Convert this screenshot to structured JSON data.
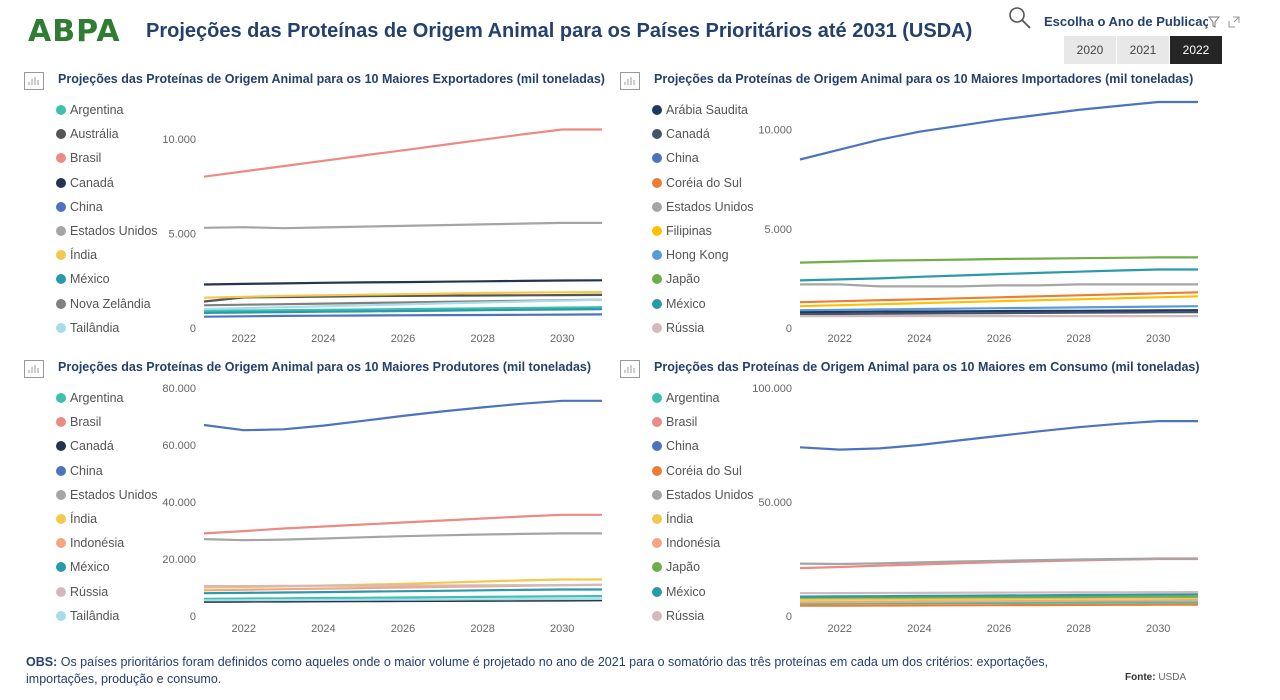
{
  "header": {
    "logo": "ABPA",
    "title": "Projeções das Proteínas de Origem Animal para os Países Prioritários até 2031 (USDA)",
    "year_filter_label": "Escolha o Ano de Publicação",
    "years": [
      "2020",
      "2021",
      "2022"
    ],
    "selected_year": "2022"
  },
  "footer": {
    "obs_label": "OBS:",
    "obs_text": "Os países prioritários foram definidos como aqueles onde o maior volume é projetado no ano de 2021 para o somatório das três proteínas em cada um dos critérios: exportações, importações, produção e consumo.",
    "fonte_label": "Fonte:",
    "fonte_value": "USDA"
  },
  "chart_data": [
    {
      "type": "line",
      "title": "Projeções das Proteínas de Origem Animal para os 10 Maiores Exportadores (mil toneladas)",
      "x": [
        2021,
        2022,
        2023,
        2024,
        2025,
        2026,
        2027,
        2028,
        2029,
        2030,
        2031
      ],
      "x_ticks": [
        "2022",
        "2024",
        "2026",
        "2028",
        "2030"
      ],
      "ylim": [
        0,
        11000
      ],
      "y_ticks": [
        0,
        5000,
        10000
      ],
      "y_tick_labels": [
        "0",
        "5.000",
        "10.000"
      ],
      "xlabel": "",
      "ylabel": "",
      "legend_position": "left",
      "series": [
        {
          "name": "Argentina",
          "color": "#3fbfad",
          "values": [
            900,
            920,
            940,
            960,
            980,
            1000,
            1020,
            1040,
            1060,
            1080,
            1100
          ]
        },
        {
          "name": "Austrália",
          "color": "#555555",
          "values": [
            1400,
            1620,
            1640,
            1660,
            1680,
            1700,
            1710,
            1720,
            1730,
            1740,
            1750
          ]
        },
        {
          "name": "Brasil",
          "color": "#ec8a85",
          "values": [
            8000,
            8280,
            8560,
            8840,
            9120,
            9400,
            9680,
            9960,
            10240,
            10500,
            10500
          ]
        },
        {
          "name": "Canadá",
          "color": "#233450",
          "values": [
            2300,
            2330,
            2360,
            2390,
            2410,
            2430,
            2450,
            2470,
            2490,
            2510,
            2520
          ]
        },
        {
          "name": "China",
          "color": "#4e73be",
          "values": [
            600,
            620,
            640,
            650,
            660,
            670,
            680,
            690,
            700,
            710,
            720
          ]
        },
        {
          "name": "Estados Unidos",
          "color": "#a5a5a5",
          "values": [
            5300,
            5330,
            5280,
            5320,
            5360,
            5400,
            5440,
            5480,
            5520,
            5560,
            5560
          ]
        },
        {
          "name": "Índia",
          "color": "#f2c94c",
          "values": [
            1600,
            1650,
            1700,
            1730,
            1760,
            1790,
            1820,
            1850,
            1870,
            1890,
            1900
          ]
        },
        {
          "name": "México",
          "color": "#2a9aaa",
          "values": [
            800,
            820,
            840,
            860,
            880,
            900,
            920,
            940,
            960,
            980,
            1000
          ]
        },
        {
          "name": "Nova Zelândia",
          "color": "#7f7f7f",
          "values": [
            1200,
            1230,
            1260,
            1290,
            1320,
            1350,
            1380,
            1410,
            1440,
            1470,
            1500
          ]
        },
        {
          "name": "Tailândia",
          "color": "#a8dce6",
          "values": [
            1000,
            1050,
            1100,
            1150,
            1200,
            1250,
            1300,
            1350,
            1400,
            1450,
            1500
          ]
        }
      ]
    },
    {
      "type": "line",
      "title": "Projeções da Proteínas de Origem Animal para os 10 Maiores Importadores (mil toneladas)",
      "x": [
        2021,
        2022,
        2023,
        2024,
        2025,
        2026,
        2027,
        2028,
        2029,
        2030,
        2031
      ],
      "x_ticks": [
        "2022",
        "2024",
        "2026",
        "2028",
        "2030"
      ],
      "ylim": [
        0,
        11500
      ],
      "y_ticks": [
        0,
        5000,
        10000
      ],
      "y_tick_labels": [
        "0",
        "5.000",
        "10.000"
      ],
      "xlabel": "",
      "ylabel": "",
      "legend_position": "left",
      "series": [
        {
          "name": "Arábia Saudita",
          "color": "#1f3864",
          "values": [
            800,
            810,
            820,
            830,
            840,
            850,
            860,
            870,
            880,
            890,
            900
          ]
        },
        {
          "name": "Canadá",
          "color": "#44546a",
          "values": [
            700,
            710,
            720,
            730,
            740,
            750,
            760,
            770,
            780,
            790,
            800
          ]
        },
        {
          "name": "China",
          "color": "#4e73be",
          "values": [
            8500,
            9000,
            9500,
            9900,
            10200,
            10500,
            10750,
            11000,
            11200,
            11400,
            11400
          ]
        },
        {
          "name": "Coréia do Sul",
          "color": "#ed7d31",
          "values": [
            1300,
            1350,
            1400,
            1450,
            1500,
            1550,
            1600,
            1650,
            1700,
            1750,
            1800
          ]
        },
        {
          "name": "Estados Unidos",
          "color": "#a5a5a5",
          "values": [
            2200,
            2200,
            2100,
            2100,
            2100,
            2150,
            2150,
            2200,
            2200,
            2200,
            2200
          ]
        },
        {
          "name": "Filipinas",
          "color": "#ffc000",
          "values": [
            1100,
            1150,
            1200,
            1250,
            1300,
            1350,
            1400,
            1450,
            1500,
            1550,
            1600
          ]
        },
        {
          "name": "Hong Kong",
          "color": "#5b9bd5",
          "values": [
            900,
            920,
            940,
            960,
            980,
            1000,
            1020,
            1040,
            1060,
            1080,
            1100
          ]
        },
        {
          "name": "Japão",
          "color": "#70ad47",
          "values": [
            3300,
            3350,
            3400,
            3420,
            3450,
            3480,
            3500,
            3520,
            3540,
            3560,
            3560
          ]
        },
        {
          "name": "México",
          "color": "#2a9aaa",
          "values": [
            2400,
            2450,
            2500,
            2580,
            2650,
            2720,
            2780,
            2840,
            2900,
            2950,
            2950
          ]
        },
        {
          "name": "Rússia",
          "color": "#d4b9bc",
          "values": [
            600,
            600,
            600,
            600,
            600,
            600,
            600,
            600,
            600,
            600,
            600
          ]
        }
      ]
    },
    {
      "type": "line",
      "title": "Projeções das Proteínas de Origem Animal para os 10 Maiores Produtores (mil toneladas)",
      "x": [
        2021,
        2022,
        2023,
        2024,
        2025,
        2026,
        2027,
        2028,
        2029,
        2030,
        2031
      ],
      "x_ticks": [
        "2022",
        "2024",
        "2026",
        "2028",
        "2030"
      ],
      "ylim": [
        0,
        80000
      ],
      "y_ticks": [
        0,
        20000,
        40000,
        60000,
        80000
      ],
      "y_tick_labels": [
        "0",
        "20.000",
        "40.000",
        "60.000",
        "80.000"
      ],
      "xlabel": "",
      "ylabel": "",
      "legend_position": "left",
      "series": [
        {
          "name": "Argentina",
          "color": "#3fbfad",
          "values": [
            6000,
            6100,
            6200,
            6300,
            6400,
            6500,
            6600,
            6700,
            6800,
            6900,
            7000
          ]
        },
        {
          "name": "Brasil",
          "color": "#ec8a85",
          "values": [
            29000,
            29800,
            30700,
            31400,
            32100,
            32800,
            33500,
            34200,
            34900,
            35500,
            35500
          ]
        },
        {
          "name": "Canadá",
          "color": "#233450",
          "values": [
            5000,
            5050,
            5100,
            5150,
            5200,
            5250,
            5300,
            5350,
            5400,
            5450,
            5500
          ]
        },
        {
          "name": "China",
          "color": "#4e73be",
          "values": [
            67000,
            65200,
            65500,
            66800,
            68500,
            70200,
            71800,
            73200,
            74500,
            75500,
            75500
          ]
        },
        {
          "name": "Estados Unidos",
          "color": "#a5a5a5",
          "values": [
            27000,
            26600,
            26800,
            27200,
            27600,
            28000,
            28300,
            28600,
            28800,
            29000,
            29000
          ]
        },
        {
          "name": "Índia",
          "color": "#f2c94c",
          "values": [
            10000,
            10200,
            10400,
            10700,
            11000,
            11300,
            11700,
            12100,
            12500,
            12800,
            12800
          ]
        },
        {
          "name": "Indonésia",
          "color": "#f4a582",
          "values": [
            9000,
            9200,
            9400,
            9600,
            9800,
            10000,
            10200,
            10400,
            10600,
            10800,
            11000
          ]
        },
        {
          "name": "México",
          "color": "#2a9aaa",
          "values": [
            8000,
            8100,
            8250,
            8400,
            8550,
            8700,
            8850,
            9000,
            9150,
            9300,
            9300
          ]
        },
        {
          "name": "Rússia",
          "color": "#d4b9bc",
          "values": [
            10500,
            10500,
            10550,
            10600,
            10600,
            10650,
            10700,
            10750,
            10800,
            10850,
            10900
          ]
        },
        {
          "name": "Tailândia",
          "color": "#a8dce6",
          "values": [
            5500,
            5550,
            5600,
            5650,
            5700,
            5750,
            5800,
            5850,
            5900,
            5950,
            6000
          ]
        }
      ]
    },
    {
      "type": "line",
      "title": "Projeções das Proteínas de Origem Animal para os 10 Maiores em Consumo (mil toneladas)",
      "x": [
        2021,
        2022,
        2023,
        2024,
        2025,
        2026,
        2027,
        2028,
        2029,
        2030,
        2031
      ],
      "x_ticks": [
        "2022",
        "2024",
        "2026",
        "2028",
        "2030"
      ],
      "ylim": [
        0,
        100000
      ],
      "y_ticks": [
        0,
        50000,
        100000
      ],
      "y_tick_labels": [
        "0",
        "50.000",
        "100.000"
      ],
      "xlabel": "",
      "ylabel": "",
      "legend_position": "left",
      "series": [
        {
          "name": "Argentina",
          "color": "#3fbfad",
          "values": [
            5500,
            5550,
            5600,
            5650,
            5700,
            5750,
            5800,
            5850,
            5900,
            5950,
            6000
          ]
        },
        {
          "name": "Brasil",
          "color": "#ec8a85",
          "values": [
            21000,
            21500,
            22100,
            22600,
            23100,
            23600,
            24000,
            24400,
            24700,
            25000,
            25000
          ]
        },
        {
          "name": "China",
          "color": "#4e73be",
          "values": [
            74000,
            73000,
            73500,
            75000,
            77000,
            79000,
            81000,
            82800,
            84300,
            85500,
            85500
          ]
        },
        {
          "name": "Coréia do Sul",
          "color": "#ed7d31",
          "values": [
            4500,
            4550,
            4600,
            4650,
            4700,
            4750,
            4800,
            4850,
            4900,
            4950,
            5000
          ]
        },
        {
          "name": "Estados Unidos",
          "color": "#a5a5a5",
          "values": [
            23000,
            22800,
            23100,
            23500,
            23900,
            24200,
            24500,
            24800,
            25000,
            25200,
            25200
          ]
        },
        {
          "name": "Índia",
          "color": "#f2c94c",
          "values": [
            7000,
            7100,
            7200,
            7300,
            7400,
            7500,
            7600,
            7700,
            7800,
            7900,
            8000
          ]
        },
        {
          "name": "Indonésia",
          "color": "#f4a582",
          "values": [
            6000,
            6100,
            6200,
            6300,
            6400,
            6500,
            6600,
            6700,
            6800,
            6900,
            7000
          ]
        },
        {
          "name": "Japão",
          "color": "#70ad47",
          "values": [
            8000,
            8050,
            8100,
            8150,
            8200,
            8250,
            8300,
            8350,
            8400,
            8450,
            8500
          ]
        },
        {
          "name": "México",
          "color": "#2a9aaa",
          "values": [
            8500,
            8600,
            8700,
            8800,
            8900,
            9000,
            9100,
            9200,
            9300,
            9400,
            9500
          ]
        },
        {
          "name": "Rússia",
          "color": "#d4b9bc",
          "values": [
            10000,
            10050,
            10100,
            10150,
            10200,
            10250,
            10300,
            10350,
            10400,
            10450,
            10500
          ]
        }
      ]
    }
  ]
}
